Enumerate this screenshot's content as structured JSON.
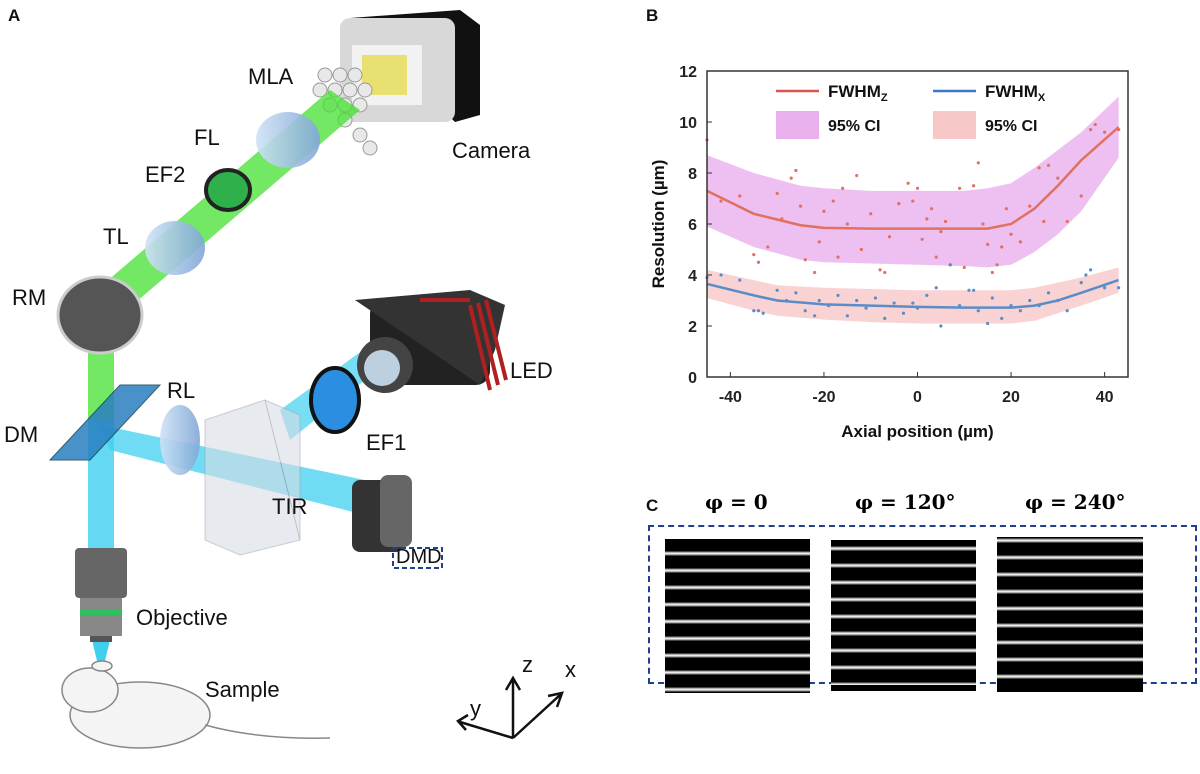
{
  "panels": {
    "a": "A",
    "b": "B",
    "c": "C"
  },
  "diagram": {
    "labels": {
      "mla": "MLA",
      "camera": "Camera",
      "fl": "FL",
      "ef2": "EF2",
      "tl": "TL",
      "rm": "RM",
      "rl": "RL",
      "dm": "DM",
      "led": "LED",
      "ef1": "EF1",
      "tir": "TIR",
      "dmd": "DMD",
      "objective": "Objective",
      "sample": "Sample"
    },
    "axes": {
      "z": "z",
      "x": "x",
      "y": "y"
    },
    "colors": {
      "emission_beam": "#44e030",
      "excitation_beam": "#3fd0f0",
      "dmd_box": "#1f3f8f"
    }
  },
  "chart_data": {
    "type": "scatter",
    "xlabel": "Axial position (µm)",
    "ylabel": "Resolution (µm)",
    "xlim": [
      -45,
      45
    ],
    "ylim": [
      0,
      12
    ],
    "xticks": [
      -40,
      -20,
      0,
      20,
      40
    ],
    "yticks": [
      0,
      2,
      4,
      6,
      8,
      10,
      12
    ],
    "grid": false,
    "legend_placement": "top",
    "legend": [
      {
        "label": "FWHM",
        "sub": "Z",
        "kind": "line",
        "color": "#d9534f"
      },
      {
        "label": "FWHM",
        "sub": "X",
        "kind": "line",
        "color": "#3a78c8"
      },
      {
        "label": "95% CI",
        "kind": "band",
        "color": "#eab0ee"
      },
      {
        "label": "95% CI",
        "kind": "band",
        "color": "#f8c8c8"
      }
    ],
    "series": [
      {
        "name": "FWHMz",
        "color": "#e07060",
        "band_color": "#eab0ee",
        "fit_x": [
          -45,
          -35,
          -25,
          -20,
          -10,
          0,
          10,
          15,
          20,
          25,
          30,
          35,
          43
        ],
        "fit_y": [
          7.3,
          6.4,
          5.95,
          5.85,
          5.82,
          5.82,
          5.82,
          5.82,
          6.0,
          6.6,
          7.5,
          8.5,
          9.8
        ],
        "ci_upper": [
          8.7,
          8.0,
          7.5,
          7.4,
          7.3,
          7.3,
          7.3,
          7.4,
          7.6,
          8.2,
          8.9,
          9.6,
          11.0
        ],
        "ci_lower": [
          5.9,
          5.1,
          4.6,
          4.5,
          4.45,
          4.4,
          4.35,
          4.3,
          4.4,
          4.9,
          5.6,
          6.5,
          8.6
        ],
        "points_x": [
          -45,
          -42,
          -38,
          -35,
          -34,
          -32,
          -30,
          -29,
          -27,
          -26,
          -25,
          -24,
          -22,
          -21,
          -20,
          -18,
          -17,
          -16,
          -15,
          -13,
          -12,
          -10,
          -8,
          -7,
          -6,
          -4,
          -2,
          -1,
          0,
          1,
          2,
          3,
          4,
          5,
          6,
          7,
          9,
          10,
          12,
          13,
          14,
          15,
          16,
          17,
          18,
          19,
          20,
          22,
          24,
          26,
          27,
          28,
          30,
          32,
          35,
          37,
          38,
          40,
          43
        ],
        "points_y": [
          9.3,
          6.9,
          7.1,
          4.8,
          4.5,
          5.1,
          7.2,
          6.2,
          7.8,
          8.1,
          6.7,
          4.6,
          4.1,
          5.3,
          6.5,
          6.9,
          4.7,
          7.4,
          6.0,
          7.9,
          5.0,
          6.4,
          4.2,
          4.1,
          5.5,
          6.8,
          7.6,
          6.9,
          7.4,
          5.4,
          6.2,
          6.6,
          4.7,
          5.7,
          6.1,
          4.4,
          7.4,
          4.3,
          7.5,
          8.4,
          6.0,
          5.2,
          4.1,
          4.4,
          5.1,
          6.6,
          5.6,
          5.3,
          6.7,
          8.2,
          6.1,
          8.3,
          7.8,
          6.1,
          7.1,
          9.7,
          9.9,
          9.6,
          9.7
        ]
      },
      {
        "name": "FWHMx",
        "color": "#5a8cc8",
        "band_color": "#f8c8c8",
        "fit_x": [
          -45,
          -35,
          -30,
          -20,
          -10,
          0,
          10,
          20,
          25,
          30,
          35,
          43
        ],
        "fit_y": [
          3.65,
          3.2,
          3.0,
          2.85,
          2.8,
          2.75,
          2.72,
          2.72,
          2.8,
          3.0,
          3.3,
          3.8
        ],
        "ci_upper": [
          4.2,
          3.8,
          3.6,
          3.5,
          3.45,
          3.4,
          3.4,
          3.4,
          3.5,
          3.7,
          3.9,
          4.3
        ],
        "ci_lower": [
          3.1,
          2.6,
          2.4,
          2.25,
          2.15,
          2.1,
          2.1,
          2.1,
          2.2,
          2.5,
          2.8,
          3.3
        ],
        "points_x": [
          -45,
          -42,
          -38,
          -35,
          -34,
          -33,
          -30,
          -28,
          -26,
          -24,
          -22,
          -21,
          -19,
          -17,
          -15,
          -13,
          -11,
          -9,
          -7,
          -5,
          -3,
          -1,
          0,
          2,
          4,
          5,
          7,
          9,
          11,
          12,
          13,
          15,
          16,
          18,
          20,
          22,
          24,
          26,
          28,
          30,
          32,
          35,
          36,
          37,
          40,
          43
        ],
        "points_y": [
          3.9,
          4.0,
          3.8,
          2.6,
          2.6,
          2.5,
          3.4,
          3.0,
          3.3,
          2.6,
          2.4,
          3.0,
          2.8,
          3.2,
          2.4,
          3.0,
          2.7,
          3.1,
          2.3,
          2.9,
          2.5,
          2.9,
          2.7,
          3.2,
          3.5,
          2.0,
          4.4,
          2.8,
          3.4,
          3.4,
          2.6,
          2.1,
          3.1,
          2.3,
          2.8,
          2.6,
          3.0,
          2.8,
          3.3,
          3.0,
          2.6,
          3.7,
          4.0,
          4.2,
          3.5,
          3.5
        ]
      }
    ]
  },
  "patterns": {
    "titles": [
      "φ = 0",
      "φ = 120°",
      "φ = 240°"
    ],
    "phase_degrees": [
      0,
      120,
      240
    ],
    "border_color": "#1f3f8f"
  }
}
